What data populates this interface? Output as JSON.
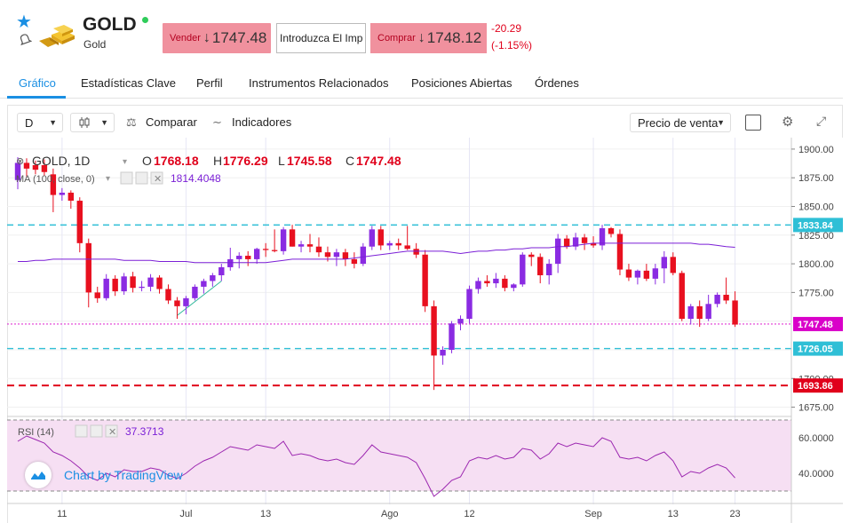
{
  "header": {
    "title": "GOLD",
    "subtitle": "Gold",
    "sell_label": "Vender",
    "sell_price": "1747.48",
    "amount_placeholder": "Introduzca El Imp",
    "buy_label": "Comprar",
    "buy_price": "1748.12",
    "change_abs": "-20.29",
    "change_pct": "(-1.15%)",
    "arrow_down": "↓",
    "star_icon": "star-icon",
    "colors": {
      "sell_bg": "#f0919e",
      "change": "#e0001b",
      "live": "#2fcc5a"
    }
  },
  "tabs": [
    {
      "label": "Gráfico",
      "active": true
    },
    {
      "label": "Estadísticas Clave"
    },
    {
      "label": "Perfil"
    },
    {
      "label": "Instrumentos Relacionados"
    },
    {
      "label": "Posiciones Abiertas"
    },
    {
      "label": "Órdenes"
    }
  ],
  "toolbar": {
    "interval": "D",
    "compare_label": "Comparar",
    "indicators_label": "Indicadores",
    "price_type": "Precio de venta"
  },
  "legend": {
    "symbol": "GOLD, 1D",
    "o_label": "O",
    "o_value": "1768.18",
    "h_label": "H",
    "h_value": "1776.29",
    "l_label": "L",
    "l_value": "1745.58",
    "c_label": "C",
    "c_value": "1747.48",
    "ma_label": "MA (100, close, 0)",
    "ma_value": "1814.4048",
    "rsi_label": "RSI (14)",
    "rsi_value": "37.3713"
  },
  "price_axis": {
    "ticks": [
      "1900.00",
      "1875.00",
      "1850.00",
      "1825.00",
      "1800.00",
      "1775.00",
      "1700.00",
      "1675.00"
    ],
    "line_labels": [
      {
        "value": 1833.84,
        "text": "1833.84",
        "color": "#2fbfd6"
      },
      {
        "value": 1747.48,
        "text": "1747.48",
        "color": "#d900c9"
      },
      {
        "value": 1726.05,
        "text": "1726.05",
        "color": "#2fbfd6"
      },
      {
        "value": 1693.86,
        "text": "1693.86",
        "color": "#e0001b"
      }
    ]
  },
  "rsi_axis": {
    "ticks": [
      "60.0000",
      "40.0000"
    ]
  },
  "time_axis": [
    "11",
    "Jul",
    "13",
    "Ago",
    "12",
    "Sep",
    "13",
    "23"
  ],
  "watermark": "Chart by TradingView",
  "chart_data": {
    "type": "candlestick",
    "title": "GOLD, 1D",
    "ylim": [
      1670,
      1910
    ],
    "moving_average": {
      "name": "MA (100, close, 0)",
      "last": 1814.4048
    },
    "rsi": {
      "name": "RSI (14)",
      "last": 37.3713,
      "ylim": [
        25,
        70
      ],
      "bands": [
        30,
        70
      ]
    },
    "horizontal_lines": [
      1833.84,
      1726.05,
      1693.86
    ],
    "candles": [
      [
        1873,
        1893,
        1865,
        1888
      ],
      [
        1888,
        1892,
        1875,
        1883
      ],
      [
        1886,
        1890,
        1878,
        1882
      ],
      [
        1886,
        1891,
        1877,
        1880
      ],
      [
        1878,
        1883,
        1845,
        1860
      ],
      [
        1860,
        1866,
        1855,
        1862
      ],
      [
        1862,
        1864,
        1848,
        1855
      ],
      [
        1855,
        1858,
        1810,
        1818
      ],
      [
        1818,
        1822,
        1762,
        1775
      ],
      [
        1775,
        1780,
        1766,
        1770
      ],
      [
        1770,
        1791,
        1768,
        1787
      ],
      [
        1787,
        1790,
        1772,
        1776
      ],
      [
        1776,
        1792,
        1773,
        1789
      ],
      [
        1789,
        1793,
        1775,
        1779
      ],
      [
        1779,
        1785,
        1776,
        1780
      ],
      [
        1780,
        1791,
        1776,
        1788
      ],
      [
        1788,
        1790,
        1774,
        1778
      ],
      [
        1778,
        1782,
        1765,
        1768
      ],
      [
        1768,
        1771,
        1752,
        1763
      ],
      [
        1763,
        1772,
        1756,
        1770
      ],
      [
        1770,
        1782,
        1768,
        1780
      ],
      [
        1780,
        1787,
        1774,
        1785
      ],
      [
        1785,
        1792,
        1780,
        1790
      ],
      [
        1790,
        1800,
        1785,
        1797
      ],
      [
        1797,
        1814,
        1794,
        1804
      ],
      [
        1804,
        1810,
        1796,
        1807
      ],
      [
        1807,
        1811,
        1798,
        1804
      ],
      [
        1804,
        1814,
        1800,
        1813
      ],
      [
        1813,
        1818,
        1806,
        1812
      ],
      [
        1812,
        1830,
        1810,
        1811
      ],
      [
        1811,
        1832,
        1808,
        1830
      ],
      [
        1830,
        1834,
        1815,
        1815
      ],
      [
        1815,
        1820,
        1810,
        1817
      ],
      [
        1817,
        1826,
        1810,
        1815
      ],
      [
        1815,
        1823,
        1806,
        1810
      ],
      [
        1810,
        1815,
        1802,
        1806
      ],
      [
        1806,
        1813,
        1798,
        1810
      ],
      [
        1810,
        1813,
        1798,
        1804
      ],
      [
        1804,
        1810,
        1796,
        1800
      ],
      [
        1800,
        1818,
        1798,
        1815
      ],
      [
        1815,
        1833,
        1812,
        1830
      ],
      [
        1830,
        1833,
        1812,
        1816
      ],
      [
        1816,
        1820,
        1812,
        1818
      ],
      [
        1818,
        1822,
        1812,
        1816
      ],
      [
        1816,
        1833,
        1812,
        1813
      ],
      [
        1813,
        1818,
        1805,
        1808
      ],
      [
        1808,
        1812,
        1758,
        1763
      ],
      [
        1763,
        1768,
        1690,
        1720
      ],
      [
        1720,
        1728,
        1712,
        1725
      ],
      [
        1725,
        1750,
        1722,
        1748
      ],
      [
        1748,
        1755,
        1742,
        1752
      ],
      [
        1752,
        1781,
        1748,
        1778
      ],
      [
        1778,
        1788,
        1774,
        1785
      ],
      [
        1785,
        1790,
        1780,
        1783
      ],
      [
        1783,
        1792,
        1779,
        1787
      ],
      [
        1787,
        1790,
        1776,
        1779
      ],
      [
        1779,
        1783,
        1776,
        1782
      ],
      [
        1782,
        1810,
        1780,
        1808
      ],
      [
        1808,
        1810,
        1798,
        1806
      ],
      [
        1806,
        1809,
        1783,
        1790
      ],
      [
        1790,
        1804,
        1782,
        1800
      ],
      [
        1800,
        1826,
        1792,
        1822
      ],
      [
        1822,
        1825,
        1813,
        1815
      ],
      [
        1815,
        1827,
        1812,
        1823
      ],
      [
        1823,
        1826,
        1812,
        1818
      ],
      [
        1818,
        1824,
        1814,
        1816
      ],
      [
        1816,
        1834,
        1812,
        1831
      ],
      [
        1831,
        1832,
        1823,
        1826
      ],
      [
        1826,
        1830,
        1790,
        1795
      ],
      [
        1795,
        1800,
        1785,
        1788
      ],
      [
        1788,
        1795,
        1782,
        1794
      ],
      [
        1794,
        1800,
        1785,
        1787
      ],
      [
        1787,
        1800,
        1782,
        1796
      ],
      [
        1796,
        1811,
        1783,
        1806
      ],
      [
        1806,
        1810,
        1790,
        1792
      ],
      [
        1792,
        1794,
        1750,
        1752
      ],
      [
        1752,
        1765,
        1747,
        1763
      ],
      [
        1763,
        1768,
        1745,
        1752
      ],
      [
        1752,
        1773,
        1750,
        1765
      ],
      [
        1765,
        1775,
        1762,
        1773
      ],
      [
        1773,
        1788,
        1765,
        1768
      ],
      [
        1768,
        1776,
        1745,
        1747
      ]
    ],
    "ma": [
      1802,
      1802,
      1803,
      1803,
      1804,
      1804,
      1804,
      1804,
      1804,
      1804,
      1804,
      1804,
      1803,
      1803,
      1803,
      1803,
      1802,
      1802,
      1802,
      1802,
      1801,
      1801,
      1801,
      1801,
      1801,
      1801,
      1801,
      1801,
      1801,
      1802,
      1803,
      1804,
      1804,
      1804,
      1804,
      1804,
      1804,
      1804,
      1805,
      1806,
      1807,
      1808,
      1809,
      1810,
      1811,
      1811,
      1811,
      1811,
      1811,
      1810,
      1809,
      1810,
      1811,
      1811,
      1812,
      1812,
      1813,
      1813,
      1814,
      1814,
      1814,
      1815,
      1815,
      1816,
      1817,
      1818,
      1818,
      1818,
      1818,
      1818,
      1818,
      1818,
      1818,
      1818,
      1818,
      1818,
      1818,
      1817,
      1817,
      1816,
      1815,
      1814.4
    ],
    "rsi_values": [
      58,
      61,
      59,
      57,
      52,
      50,
      47,
      43,
      38,
      36,
      40,
      38,
      42,
      41,
      41,
      43,
      42,
      39,
      37,
      40,
      44,
      47,
      49,
      52,
      55,
      54,
      53,
      56,
      55,
      54,
      58,
      50,
      51,
      50,
      48,
      47,
      48,
      46,
      45,
      50,
      56,
      52,
      51,
      50,
      49,
      46,
      37,
      27,
      31,
      36,
      38,
      47,
      49,
      48,
      50,
      48,
      49,
      54,
      53,
      48,
      51,
      57,
      55,
      57,
      56,
      55,
      60,
      58,
      49,
      48,
      49,
      47,
      50,
      52,
      47,
      38,
      41,
      40,
      43,
      45,
      43,
      37.4
    ]
  }
}
